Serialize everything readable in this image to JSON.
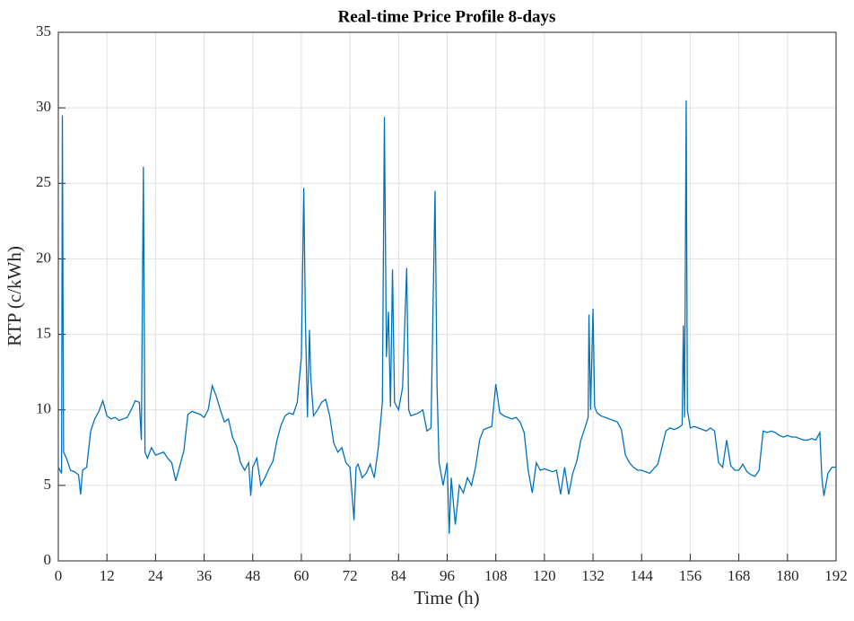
{
  "chart_data": {
    "type": "line",
    "title": "Real-time Price Profile 8-days",
    "xlabel": "Time (h)",
    "ylabel": "RTP (c/kWh)",
    "x": [
      0,
      0.8,
      1.0,
      1.3,
      2,
      3,
      4,
      5,
      5.5,
      6,
      7,
      8,
      9,
      10,
      11,
      12,
      13,
      14,
      15,
      16,
      17,
      18,
      19,
      20,
      20.5,
      21,
      21.4,
      22,
      23,
      24,
      25,
      26,
      27,
      28,
      29,
      30,
      31,
      32,
      33,
      34,
      35,
      36,
      37,
      38,
      39,
      40,
      41,
      42,
      43,
      44,
      45,
      46,
      47,
      47.5,
      48,
      49,
      50,
      51,
      52,
      53,
      54,
      55,
      56,
      57,
      58,
      59,
      60,
      60.6,
      61,
      61.5,
      62,
      62.3,
      63,
      64,
      65,
      66,
      67,
      68,
      69,
      70,
      71,
      72,
      73,
      73.5,
      74,
      75,
      76,
      77,
      78,
      79,
      80,
      80.5,
      81,
      81.5,
      82,
      82.5,
      83,
      84,
      85,
      86,
      86.5,
      87,
      88,
      89,
      90,
      91,
      92,
      93,
      93.5,
      94,
      95,
      96,
      96.5,
      97,
      98,
      99,
      100,
      101,
      102,
      103,
      104,
      105,
      106,
      107,
      108,
      109,
      110,
      111,
      112,
      113,
      114,
      115,
      116,
      117,
      118,
      119,
      120,
      121,
      122,
      123,
      124,
      125,
      126,
      127,
      128,
      129,
      130,
      130.8,
      131,
      131.4,
      132,
      132.4,
      133,
      134,
      135,
      136,
      137,
      138,
      139,
      140,
      141,
      142,
      143,
      144,
      145,
      146,
      147,
      148,
      149,
      150,
      151,
      152,
      153,
      154,
      154.3,
      154.6,
      155,
      155.3,
      156,
      157,
      158,
      159,
      160,
      161,
      162,
      163,
      164,
      165,
      166,
      167,
      168,
      169,
      170,
      171,
      172,
      173,
      174,
      175,
      176,
      177,
      178,
      179,
      180,
      181,
      182,
      183,
      184,
      185,
      186,
      187,
      188,
      188.5,
      189,
      190,
      191,
      192
    ],
    "values": [
      6.2,
      5.8,
      29.5,
      7.2,
      6.8,
      6.0,
      5.9,
      5.7,
      4.4,
      6.0,
      6.2,
      8.6,
      9.4,
      9.9,
      10.6,
      9.6,
      9.4,
      9.5,
      9.3,
      9.4,
      9.5,
      10.0,
      10.6,
      10.5,
      8.0,
      26.1,
      7.2,
      6.8,
      7.5,
      7.0,
      7.1,
      7.2,
      6.8,
      6.5,
      5.3,
      6.3,
      7.3,
      9.7,
      9.9,
      9.8,
      9.7,
      9.5,
      10.0,
      11.6,
      10.9,
      10.0,
      9.2,
      9.4,
      8.2,
      7.6,
      6.5,
      6.0,
      6.5,
      4.3,
      6.2,
      6.8,
      5.0,
      5.5,
      6.1,
      6.6,
      8.0,
      9.0,
      9.6,
      9.8,
      9.7,
      10.5,
      13.5,
      24.7,
      16.0,
      9.5,
      15.3,
      12.3,
      9.6,
      10.0,
      10.5,
      10.7,
      9.6,
      7.8,
      7.2,
      7.5,
      6.5,
      6.2,
      2.7,
      6.2,
      6.4,
      5.5,
      5.8,
      6.4,
      5.5,
      7.5,
      10.5,
      29.4,
      13.5,
      16.5,
      10.2,
      19.3,
      10.5,
      10.0,
      11.5,
      19.4,
      10.0,
      9.6,
      9.7,
      9.8,
      10.0,
      8.6,
      8.8,
      24.5,
      11.5,
      6.5,
      5.0,
      6.5,
      1.8,
      5.5,
      2.4,
      5.0,
      4.5,
      5.5,
      5.0,
      6.2,
      8.0,
      8.7,
      8.8,
      8.9,
      11.7,
      9.8,
      9.6,
      9.5,
      9.4,
      9.5,
      9.2,
      8.5,
      6.0,
      4.5,
      6.5,
      6.0,
      6.1,
      6.0,
      5.9,
      6.0,
      4.4,
      6.2,
      4.4,
      5.8,
      6.6,
      8.0,
      8.8,
      9.5,
      16.3,
      10.0,
      16.7,
      10.2,
      9.8,
      9.6,
      9.5,
      9.4,
      9.3,
      9.2,
      8.7,
      7.0,
      6.5,
      6.2,
      6.0,
      6.0,
      5.9,
      5.8,
      6.1,
      6.4,
      7.5,
      8.6,
      8.8,
      8.7,
      8.8,
      9.0,
      15.6,
      9.5,
      30.5,
      10.0,
      8.8,
      8.9,
      8.8,
      8.7,
      8.6,
      8.8,
      8.6,
      6.5,
      6.2,
      8.0,
      6.3,
      6.0,
      6.0,
      6.4,
      5.9,
      5.7,
      5.6,
      6.0,
      8.6,
      8.5,
      8.6,
      8.5,
      8.3,
      8.2,
      8.3,
      8.2,
      8.2,
      8.1,
      8.0,
      8.0,
      8.1,
      8.0,
      8.5,
      5.5,
      4.3,
      5.8,
      6.2,
      6.2
    ],
    "color": "#0072bd",
    "xlim": [
      0,
      192
    ],
    "xticks": [
      0,
      12,
      24,
      36,
      48,
      60,
      72,
      84,
      96,
      108,
      120,
      132,
      144,
      156,
      168,
      180,
      192
    ],
    "ylim": [
      0,
      35
    ],
    "yticks": [
      0,
      5,
      10,
      15,
      20,
      25,
      30,
      35
    ],
    "grid": true
  }
}
